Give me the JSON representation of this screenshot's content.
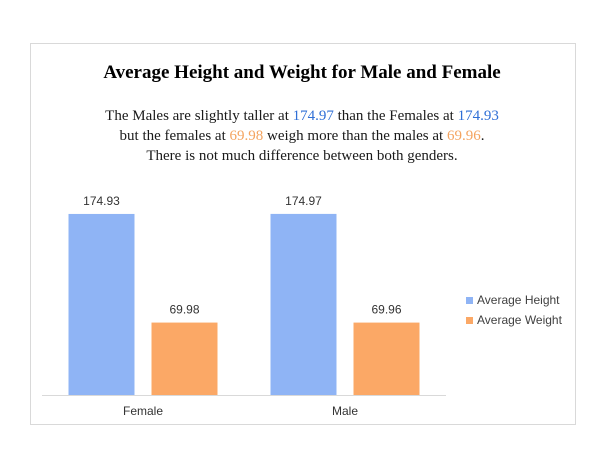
{
  "chart_data": {
    "type": "bar",
    "title": "Average Height and Weight for Male and Female",
    "subtitle": {
      "line1": {
        "before": "The Males are slightly taller at ",
        "male_height": "174.97",
        "middle": " than the Females at ",
        "female_height": "174.93"
      },
      "line2": {
        "before": "but the females at ",
        "female_weight": "69.98",
        "middle": " weigh more than the males at ",
        "male_weight": "69.96",
        "after": "."
      },
      "line3": "There is not much difference between both genders."
    },
    "categories": [
      "Female",
      "Male"
    ],
    "series": [
      {
        "name": "Average Height",
        "values": [
          174.93,
          174.97
        ],
        "color": "#8fb4f5"
      },
      {
        "name": "Average Weight",
        "values": [
          69.98,
          69.96
        ],
        "color": "#fba866"
      }
    ],
    "ylim": [
      0,
      200
    ],
    "grid": false,
    "legend": "right"
  }
}
